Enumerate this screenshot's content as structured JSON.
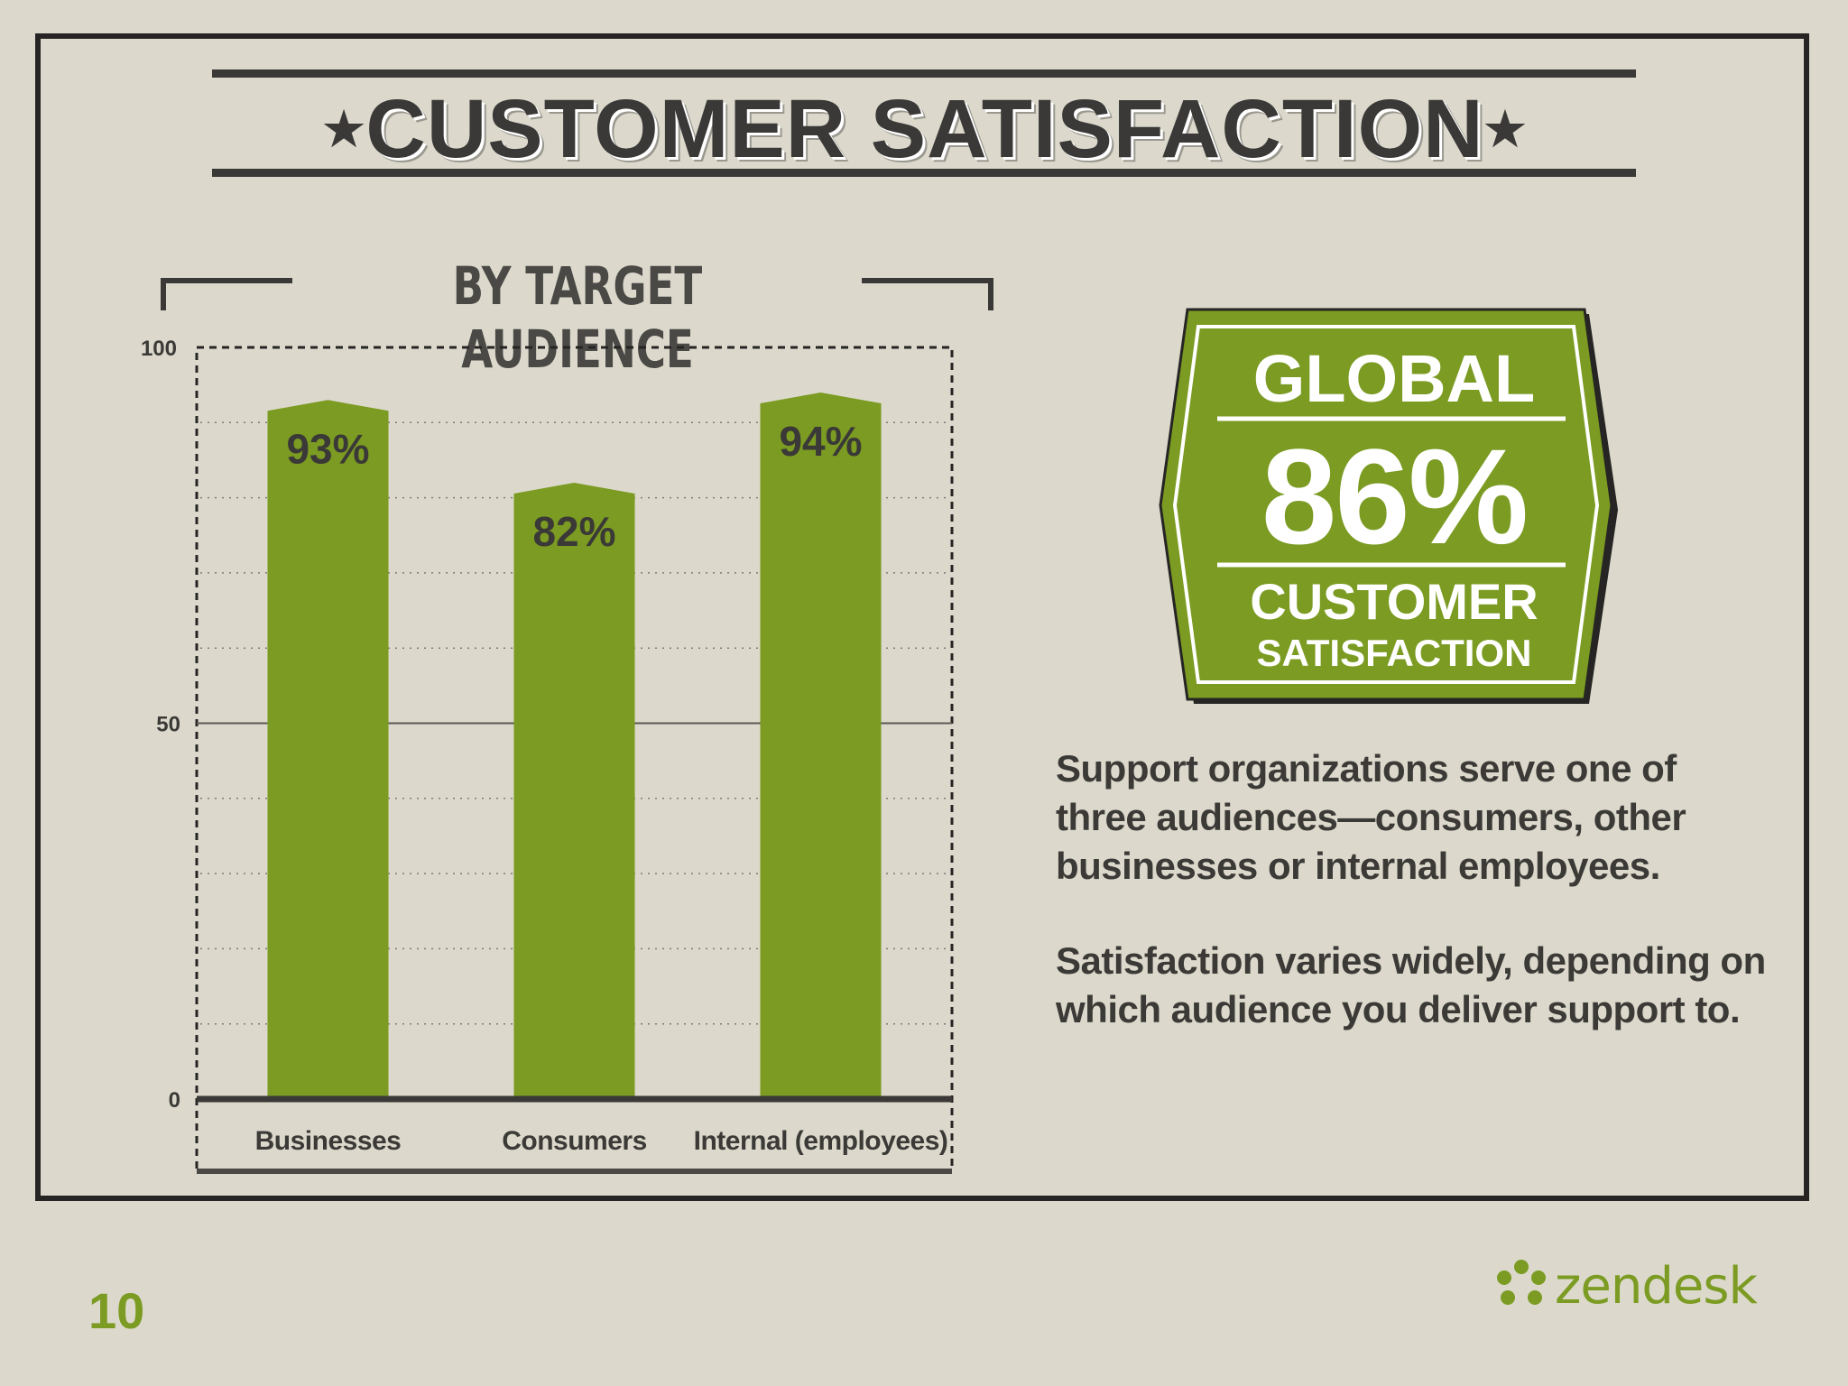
{
  "title": "CUSTOMER SATISFACTION",
  "title_star": "★",
  "colors": {
    "background": "#dcd9cc",
    "bar": "#7b9b22",
    "badge": "#7b9b22",
    "text": "#3b3a37",
    "page_number": "#7b9b22"
  },
  "chart_data": {
    "type": "bar",
    "title": "BY TARGET AUDIENCE",
    "categories": [
      "Businesses",
      "Consumers",
      "Internal (employees)"
    ],
    "values": [
      93,
      82,
      94
    ],
    "value_labels": [
      "93%",
      "82%",
      "94%"
    ],
    "yticks": [
      0,
      50,
      100
    ],
    "ylim": [
      0,
      100
    ],
    "grid": true
  },
  "badge": {
    "line1": "GLOBAL",
    "value": "86%",
    "line2": "CUSTOMER",
    "line3": "SATISFACTION"
  },
  "paragraphs": [
    "Support organizations serve one of three audiences—consumers, other businesses or internal employees.",
    "Satisfaction varies widely, depending on which audience you deliver support to."
  ],
  "page_number": "10",
  "logo": {
    "text": "zendesk",
    "icon": "zendesk-logo-icon"
  }
}
